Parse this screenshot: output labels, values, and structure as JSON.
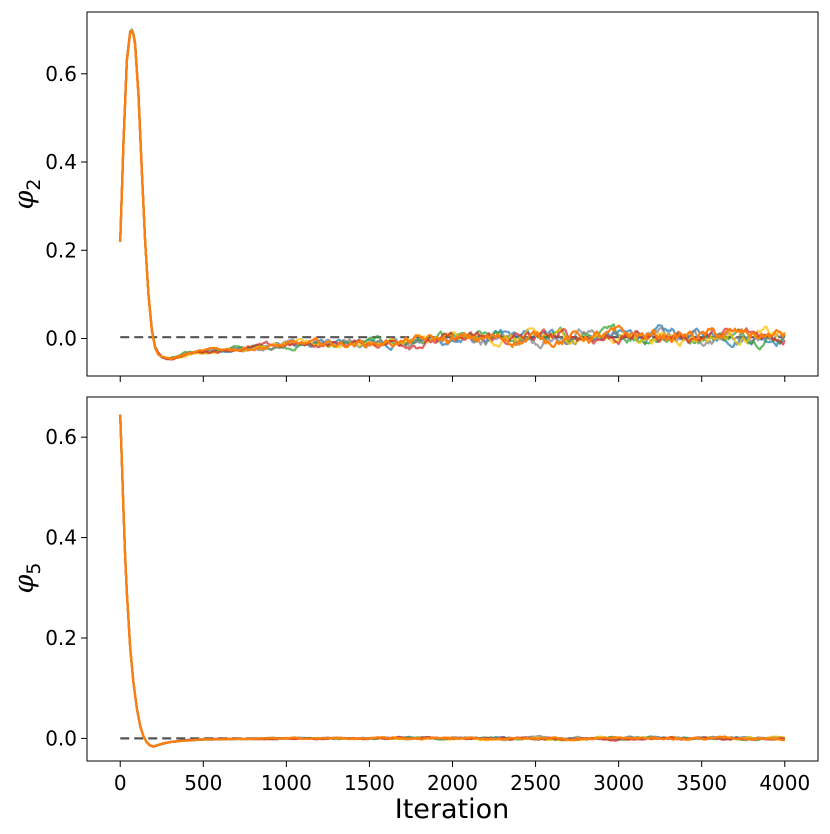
{
  "chart_data": [
    {
      "type": "line",
      "ylabel_symbol": "φ",
      "ylabel_subscript": "2",
      "xlabel": "",
      "xlim": [
        -200,
        4200
      ],
      "ylim": [
        -0.085,
        0.74
      ],
      "yticks": [
        0.0,
        0.2,
        0.4,
        0.6
      ],
      "ytick_labels": [
        "0.0",
        "0.2",
        "0.4",
        "0.6"
      ],
      "xticks": [
        0,
        500,
        1000,
        1500,
        2000,
        2500,
        3000,
        3500,
        4000
      ],
      "xtick_labels": [],
      "reference_line": {
        "y": 0.003,
        "x": [
          0,
          4000
        ],
        "style": "dashed",
        "color": "#555555"
      },
      "series_colors": [
        "#1f77b4",
        "#2ca02c",
        "#7f7f7f",
        "#ffbf00",
        "#d62728",
        "#ff7f0e"
      ],
      "x": [
        0,
        20,
        40,
        60,
        75,
        90,
        110,
        130,
        150,
        170,
        190,
        210,
        230,
        250,
        270,
        300,
        340,
        400,
        500,
        600,
        700,
        800,
        900,
        1000,
        1100,
        1200,
        1300,
        1400,
        1500,
        1600,
        1700,
        1800,
        1900,
        2000,
        2100,
        2200,
        2300,
        2400,
        2500,
        2600,
        2700,
        2800,
        2900,
        3000,
        3100,
        3200,
        3300,
        3400,
        3500,
        3600,
        3700,
        3800,
        3900,
        4000
      ],
      "mean": [
        0.22,
        0.45,
        0.63,
        0.695,
        0.7,
        0.665,
        0.55,
        0.38,
        0.22,
        0.1,
        0.02,
        -0.02,
        -0.035,
        -0.042,
        -0.045,
        -0.046,
        -0.042,
        -0.035,
        -0.03,
        -0.026,
        -0.022,
        -0.02,
        -0.018,
        -0.016,
        -0.014,
        -0.013,
        -0.012,
        -0.011,
        -0.01,
        -0.008,
        -0.007,
        -0.006,
        -0.005,
        -0.004,
        -0.003,
        -0.002,
        -0.001,
        0.0,
        0.001,
        0.002,
        0.003,
        0.004,
        0.004,
        0.005,
        0.005,
        0.006,
        0.006,
        0.006,
        0.006,
        0.007,
        0.007,
        0.007,
        0.007,
        0.007
      ],
      "noise_amplitude": 0.012
    },
    {
      "type": "line",
      "ylabel_symbol": "φ",
      "ylabel_subscript": "5",
      "xlabel": "Iteration",
      "xlim": [
        -200,
        4200
      ],
      "ylim": [
        -0.045,
        0.68
      ],
      "yticks": [
        0.0,
        0.2,
        0.4,
        0.6
      ],
      "ytick_labels": [
        "0.0",
        "0.2",
        "0.4",
        "0.6"
      ],
      "xticks": [
        0,
        500,
        1000,
        1500,
        2000,
        2500,
        3000,
        3500,
        4000
      ],
      "xtick_labels": [
        "0",
        "500",
        "1000",
        "1500",
        "2000",
        "2500",
        "3000",
        "3500",
        "4000"
      ],
      "reference_line": {
        "y": 0.0,
        "x": [
          0,
          4000
        ],
        "style": "dashed",
        "color": "#555555"
      },
      "series_colors": [
        "#1f77b4",
        "#2ca02c",
        "#7f7f7f",
        "#ffbf00",
        "#d62728",
        "#ff7f0e"
      ],
      "x": [
        0,
        10,
        20,
        30,
        40,
        60,
        80,
        100,
        120,
        140,
        160,
        180,
        200,
        230,
        260,
        300,
        400,
        500,
        700,
        1000,
        1500,
        2000,
        2500,
        3000,
        3500,
        4000
      ],
      "mean": [
        0.645,
        0.55,
        0.45,
        0.36,
        0.29,
        0.18,
        0.11,
        0.06,
        0.025,
        0.004,
        -0.008,
        -0.014,
        -0.016,
        -0.013,
        -0.01,
        -0.007,
        -0.004,
        -0.002,
        -0.001,
        0.0,
        0.0,
        0.0,
        0.0,
        0.0,
        0.0,
        0.0
      ],
      "noise_amplitude": 0.002
    }
  ]
}
